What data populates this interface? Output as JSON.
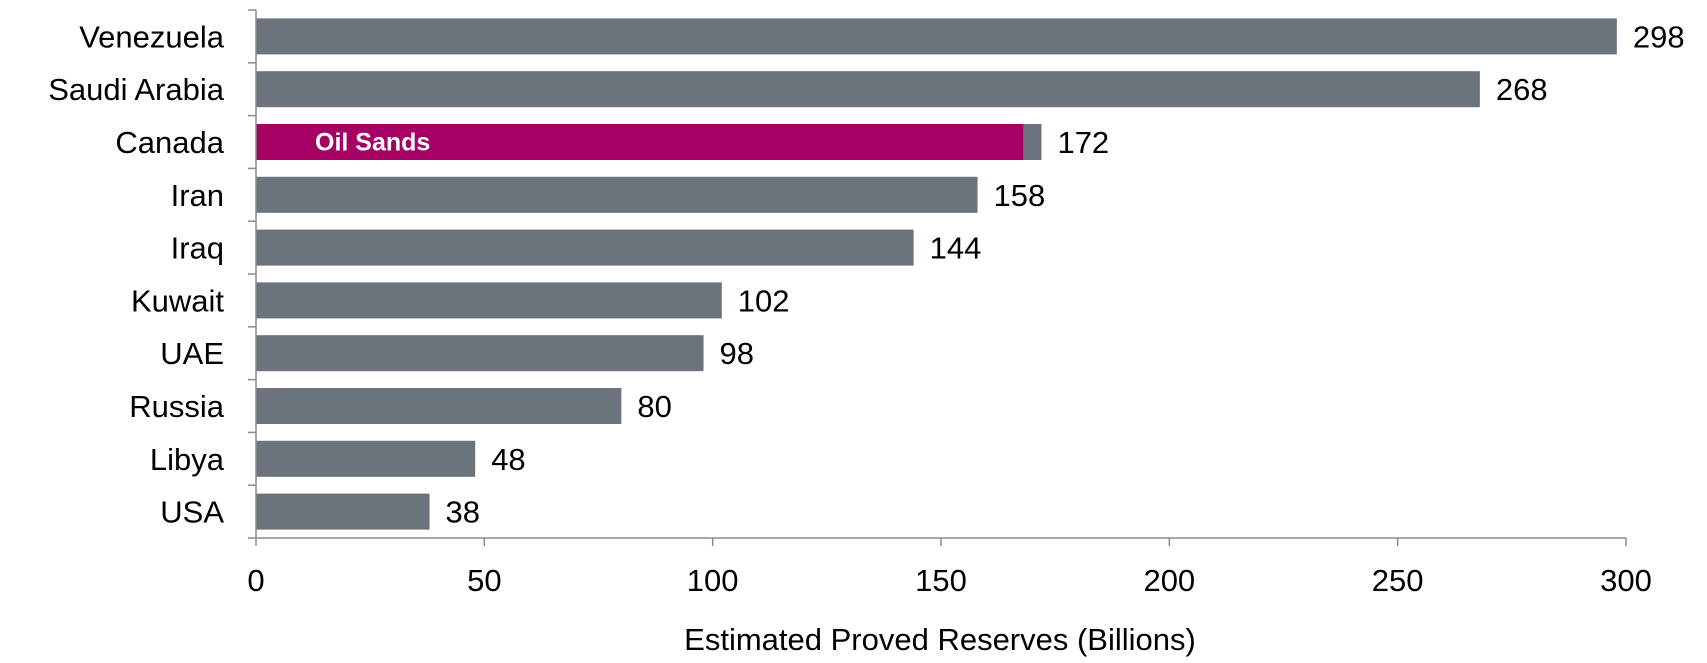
{
  "chart_data": {
    "type": "bar",
    "orientation": "horizontal",
    "categories": [
      "Venezuela",
      "Saudi Arabia",
      "Canada",
      "Iran",
      "Iraq",
      "Kuwait",
      "UAE",
      "Russia",
      "Libya",
      "USA"
    ],
    "values": [
      298,
      268,
      172,
      158,
      144,
      102,
      98,
      80,
      48,
      38
    ],
    "highlight": {
      "category": "Canada",
      "label": "Oil Sands",
      "value": 168,
      "color": "#a50063"
    },
    "bar_color": "#6b737c",
    "title": "",
    "xlabel": "Estimated Proved Reserves (Billions)",
    "ylabel": "",
    "xlim": [
      0,
      300
    ],
    "xticks": [
      0,
      50,
      100,
      150,
      200,
      250,
      300
    ],
    "grid": false,
    "legend": "none"
  }
}
